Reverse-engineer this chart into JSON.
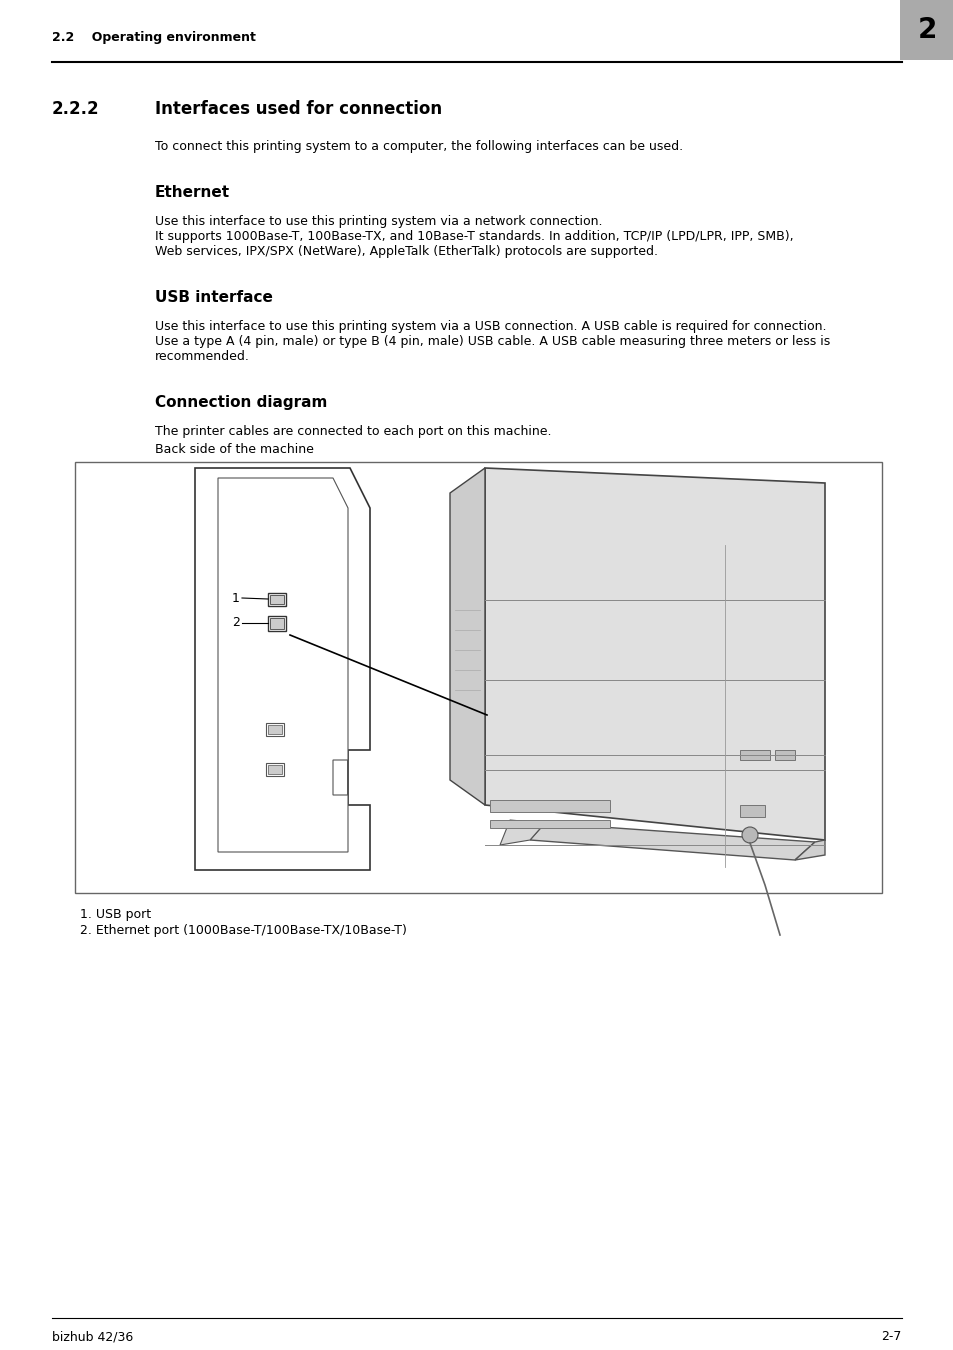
{
  "bg_color": "#ffffff",
  "header_text_left": "2.2    Operating environment",
  "header_number": "2",
  "header_number_bg": "#aaaaaa",
  "section_number": "2.2.2",
  "section_title": "Interfaces used for connection",
  "intro_text": "To connect this printing system to a computer, the following interfaces can be used.",
  "ethernet_title": "Ethernet",
  "ethernet_line1": "Use this interface to use this printing system via a network connection.",
  "ethernet_line2": "It supports 1000Base-T, 100Base-TX, and 10Base-T standards. In addition, TCP/IP (LPD/LPR, IPP, SMB),",
  "ethernet_line3": "Web services, IPX/SPX (NetWare), AppleTalk (EtherTalk) protocols are supported.",
  "usb_title": "USB interface",
  "usb_line1": "Use this interface to use this printing system via a USB connection. A USB cable is required for connection.",
  "usb_line2": "Use a type A (4 pin, male) or type B (4 pin, male) USB cable. A USB cable measuring three meters or less is",
  "usb_line3": "recommended.",
  "conn_title": "Connection diagram",
  "conn_body1": "The printer cables are connected to each port on this machine.",
  "conn_body2": "Back side of the machine",
  "footnote1": "1. USB port",
  "footnote2": "2. Ethernet port (1000Base-T/100Base-TX/10Base-T)",
  "footer_left": "bizhub 42/36",
  "footer_right": "2-7",
  "line_color": "#000000"
}
